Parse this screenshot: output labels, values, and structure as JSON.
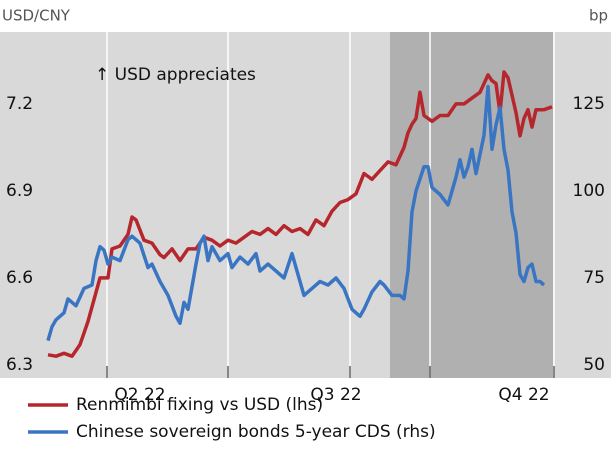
{
  "chart_data": {
    "type": "line",
    "left_axis_label": "USD/CNY",
    "right_axis_label": "bp",
    "annotation": "↑ USD appreciates",
    "xlim": [
      0,
      152.75
    ],
    "xticks": [
      26.75,
      57,
      87.5,
      107.5,
      138.5
    ],
    "xlabels": [
      {
        "value": 35,
        "label": "Q2 22"
      },
      {
        "value": 84,
        "label": "Q3 22"
      },
      {
        "value": 131,
        "label": "Q4 22"
      }
    ],
    "shaded_span": [
      97.5,
      138.25
    ],
    "ylim": [
      6.255,
      7.448
    ],
    "yticks": [
      6.3,
      6.6,
      6.9,
      7.2
    ],
    "y2lim": [
      46.26,
      145.7
    ],
    "y2ticks": [
      50,
      75,
      100,
      125
    ],
    "grid": true,
    "series": [
      {
        "name": "Renmimbi fixing vs USD (lhs)",
        "color": "#b5272d",
        "axis": "y",
        "x": [
          12,
          14,
          16,
          18,
          20,
          22,
          23,
          25,
          27,
          28,
          30,
          32,
          33,
          34,
          36,
          38,
          40,
          41,
          43,
          45,
          47,
          49,
          51,
          53,
          55,
          57,
          59,
          61,
          63,
          65,
          67,
          69,
          71,
          73,
          75,
          77,
          79,
          81,
          83,
          85,
          87,
          89,
          91,
          93,
          95,
          97,
          99,
          101,
          102,
          103,
          104,
          105,
          106,
          108,
          110,
          112,
          114,
          116,
          118,
          120,
          122,
          123,
          124,
          125,
          126,
          127,
          128,
          129,
          130,
          131,
          132,
          133,
          134,
          136,
          138
        ],
        "values": [
          6.335,
          6.33,
          6.34,
          6.33,
          6.37,
          6.45,
          6.5,
          6.6,
          6.6,
          6.7,
          6.71,
          6.75,
          6.81,
          6.8,
          6.73,
          6.72,
          6.68,
          6.67,
          6.7,
          6.66,
          6.7,
          6.7,
          6.74,
          6.73,
          6.71,
          6.73,
          6.72,
          6.74,
          6.76,
          6.75,
          6.77,
          6.75,
          6.78,
          6.76,
          6.77,
          6.75,
          6.8,
          6.78,
          6.83,
          6.86,
          6.87,
          6.89,
          6.96,
          6.94,
          6.97,
          7.0,
          6.99,
          7.05,
          7.1,
          7.13,
          7.15,
          7.24,
          7.16,
          7.14,
          7.16,
          7.16,
          7.2,
          7.2,
          7.22,
          7.24,
          7.3,
          7.28,
          7.27,
          7.17,
          7.31,
          7.29,
          7.23,
          7.17,
          7.09,
          7.15,
          7.18,
          7.12,
          7.18,
          7.18,
          7.19
        ]
      },
      {
        "name": "Chinese sovereign bonds 5-year CDS (rhs)",
        "color": "#3a75c4",
        "axis": "y2",
        "x": [
          12,
          13,
          14,
          16,
          17,
          19,
          21,
          23,
          24,
          25,
          26,
          27,
          28,
          30,
          32,
          33,
          35,
          37,
          38,
          40,
          42,
          44,
          45,
          46,
          47,
          49,
          50,
          51,
          52,
          53,
          55,
          57,
          58,
          60,
          62,
          64,
          65,
          67,
          69,
          71,
          73,
          75,
          76,
          78,
          80,
          82,
          84,
          86,
          87,
          88,
          90,
          91,
          93,
          95,
          96,
          98,
          100,
          101,
          102,
          103,
          104,
          106,
          107,
          108,
          110,
          112,
          114,
          115,
          116,
          117,
          118,
          119,
          121,
          122,
          123,
          124,
          125,
          126,
          127,
          128,
          129,
          130,
          131,
          132,
          133,
          134,
          135,
          136
        ],
        "values": [
          57,
          61,
          63,
          65,
          69,
          67,
          72,
          73,
          80,
          84,
          83,
          79,
          81,
          80,
          86,
          87,
          85,
          78,
          79,
          74,
          70,
          64,
          62,
          68,
          66,
          79,
          85,
          87,
          80,
          84,
          80,
          82,
          78,
          81,
          79,
          82,
          77,
          79,
          77,
          75,
          82,
          74,
          70,
          72,
          74,
          73,
          75,
          72,
          69,
          66,
          64,
          66,
          71,
          74,
          73,
          70,
          70,
          69,
          77,
          94,
          100,
          107,
          107,
          101,
          99,
          96,
          104,
          109,
          104,
          107,
          112,
          105,
          116,
          130,
          112,
          119,
          124,
          112,
          106,
          94,
          88,
          76,
          74,
          78,
          79,
          74,
          74,
          73
        ]
      }
    ]
  }
}
